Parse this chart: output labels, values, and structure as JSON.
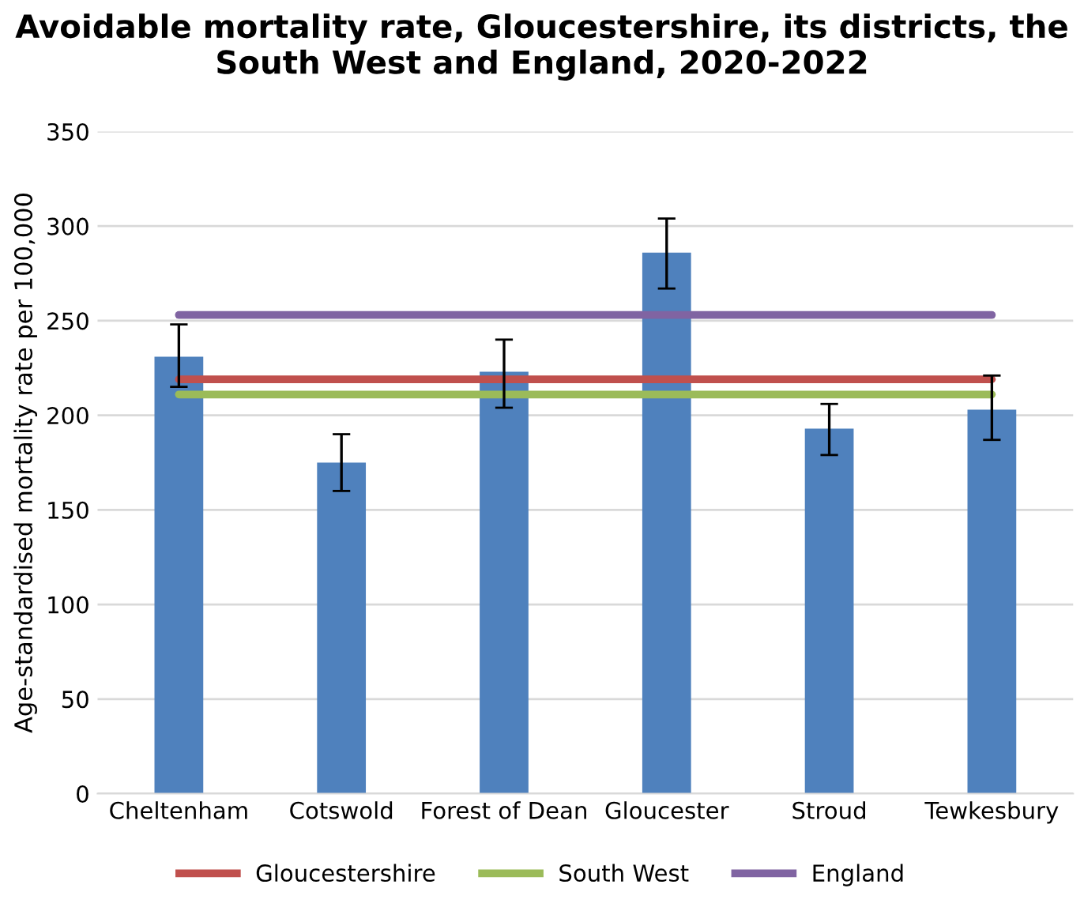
{
  "chart_data": {
    "type": "bar",
    "title": "Avoidable mortality rate, Gloucestershire, its districts, the South West and England, 2020-2022",
    "ylabel": "Age-standardised mortality rate per 100,000",
    "categories": [
      "Cheltenham",
      "Cotswold",
      "Forest of Dean",
      "Gloucester",
      "Stroud",
      "Tewkesbury"
    ],
    "series": [
      {
        "color": "#4f81bd",
        "values": [
          231,
          175,
          223,
          286,
          193,
          203
        ],
        "errors": [
          [
            215,
            248
          ],
          [
            160,
            190
          ],
          [
            204,
            240
          ],
          [
            267,
            304
          ],
          [
            179,
            206
          ],
          [
            187,
            221
          ]
        ]
      },
      {
        "type": "line",
        "name": "Gloucestershire",
        "color": "#c0504d",
        "values": [
          219,
          219,
          219,
          219,
          219,
          219
        ]
      },
      {
        "type": "line",
        "name": "South West",
        "color": "#9bbb59",
        "values": [
          211,
          211,
          211,
          211,
          211,
          211
        ]
      },
      {
        "type": "line",
        "name": "England",
        "color": "#8064a2",
        "values": [
          253,
          253,
          253,
          253,
          253,
          253
        ]
      }
    ],
    "ylim": [
      0,
      350
    ],
    "yticks": [
      0,
      50,
      100,
      150,
      200,
      250,
      300,
      350
    ],
    "grid": "y",
    "legend": "bottom",
    "marker": "none",
    "line_style": "solid"
  }
}
